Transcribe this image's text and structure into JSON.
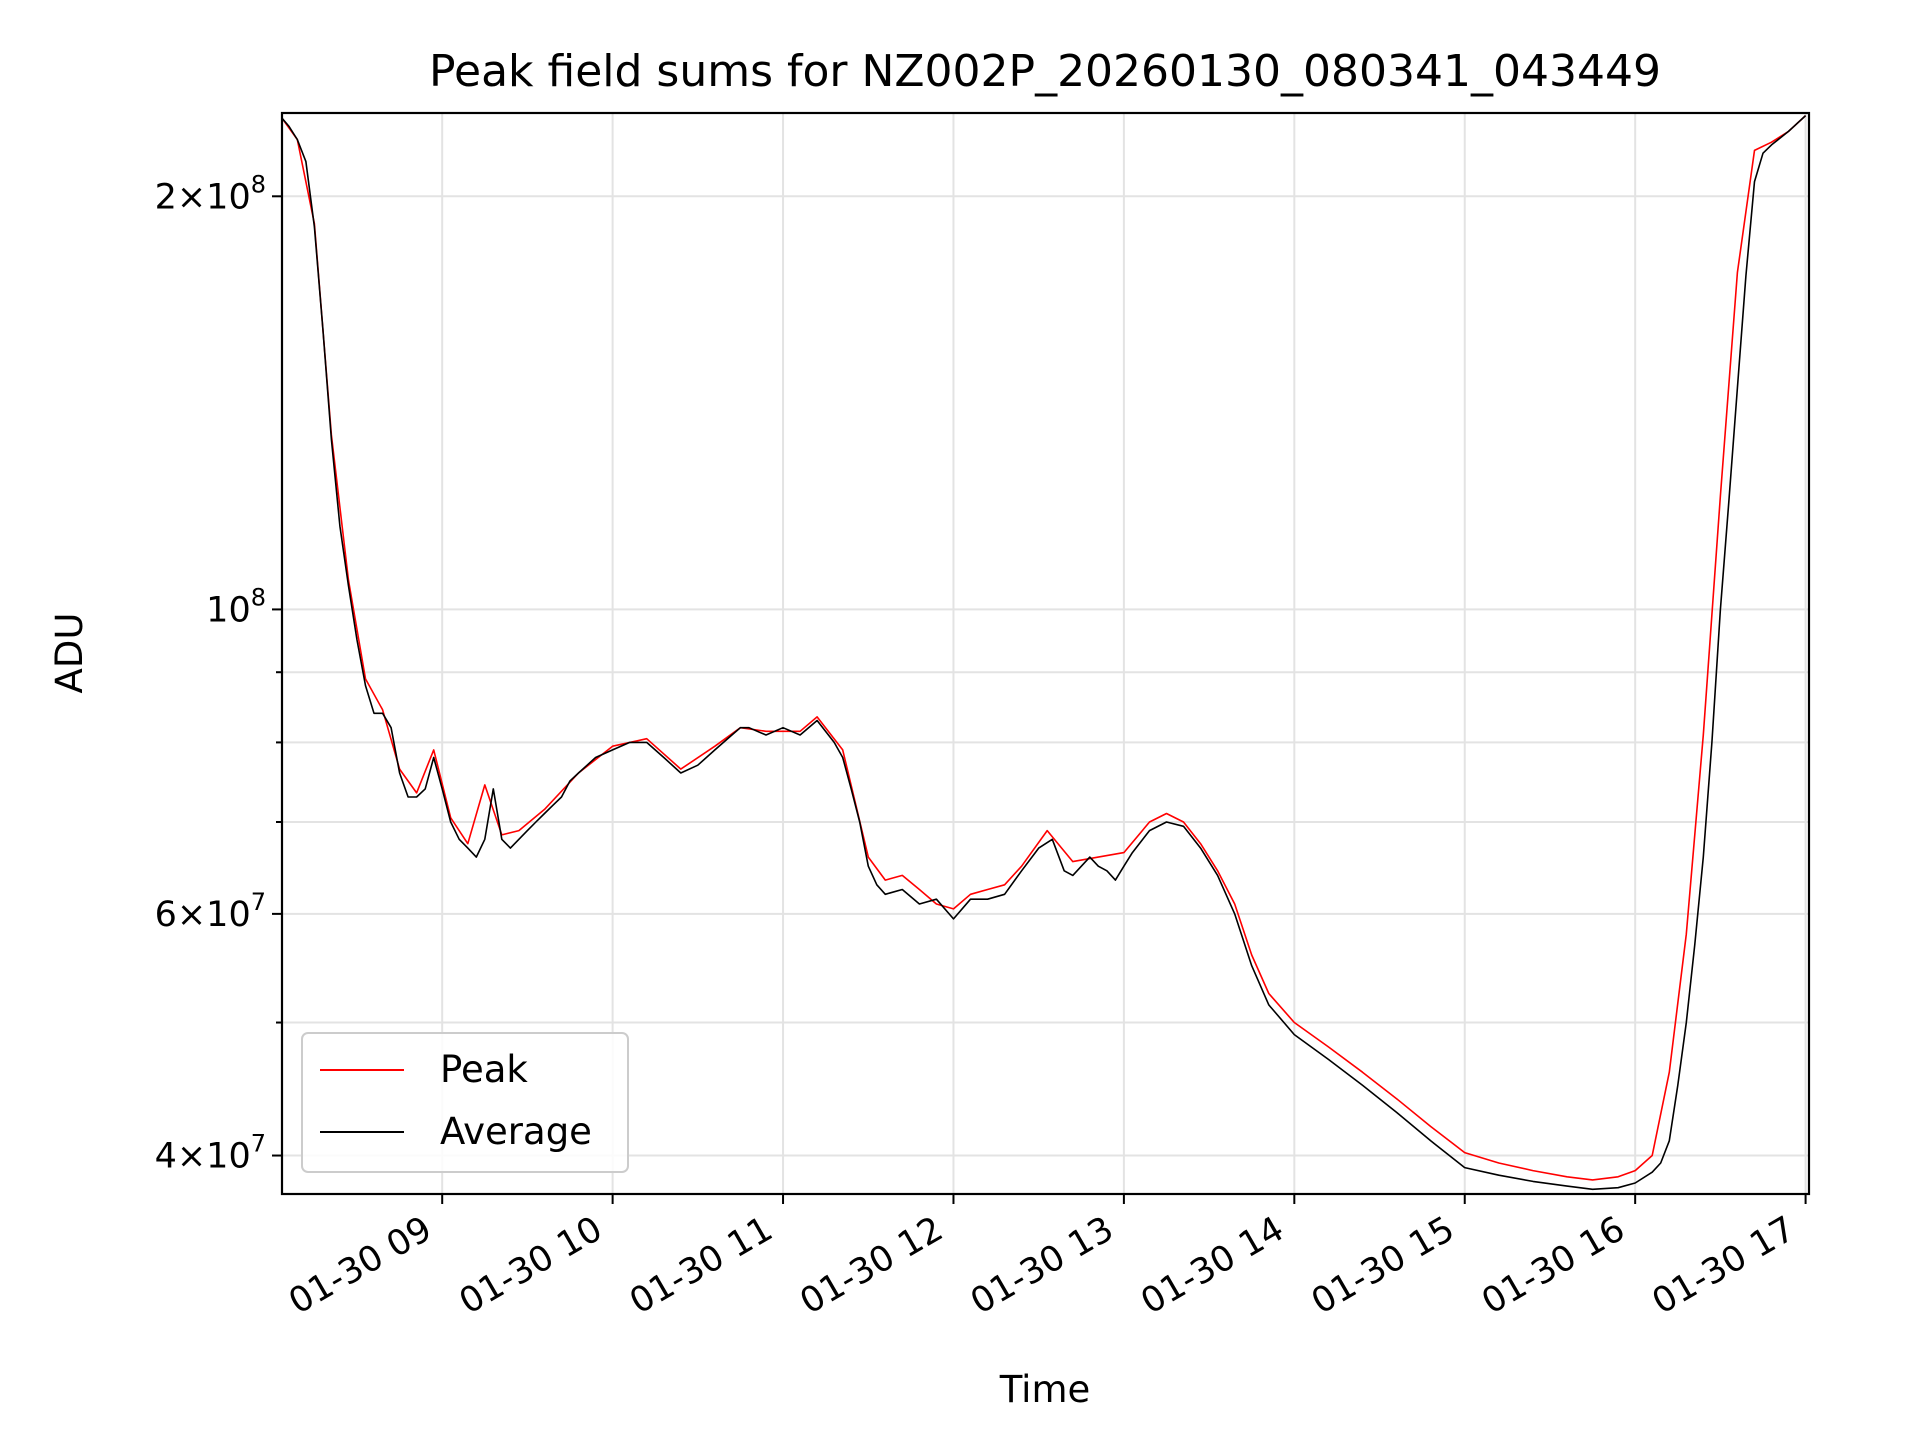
{
  "chart_data": {
    "type": "line",
    "title": "Peak field sums for NZ002P_20260130_080341_043449",
    "xlabel": "Time",
    "ylabel": "ADU",
    "yscale": "log",
    "xlim": [
      8.06,
      17.02
    ],
    "ylim": [
      37500000,
      230000000
    ],
    "x_unit": "hours on 2026-01-30",
    "x_ticks": [
      9,
      10,
      11,
      12,
      13,
      14,
      15,
      16,
      17
    ],
    "x_tick_labels": [
      "01-30 09",
      "01-30 10",
      "01-30 11",
      "01-30 12",
      "01-30 13",
      "01-30 14",
      "01-30 15",
      "01-30 16",
      "01-30 17"
    ],
    "y_major_ticks": [
      {
        "value": 40000000,
        "mantissa": "4",
        "exp": "7"
      },
      {
        "value": 60000000,
        "mantissa": "6",
        "exp": "7"
      },
      {
        "value": 100000000,
        "mantissa": "",
        "exp": "8"
      },
      {
        "value": 200000000,
        "mantissa": "2",
        "exp": "8"
      }
    ],
    "y_minor_ticks": [
      50000000,
      70000000,
      80000000,
      90000000
    ],
    "grid": true,
    "legend": {
      "position": "lower-left",
      "entries": [
        {
          "label": "Peak",
          "color": "#ff0000"
        },
        {
          "label": "Average",
          "color": "#000000"
        }
      ]
    },
    "series": [
      {
        "name": "Average",
        "color": "#000000",
        "x": [
          8.06,
          8.1,
          8.15,
          8.2,
          8.25,
          8.3,
          8.35,
          8.4,
          8.45,
          8.5,
          8.55,
          8.6,
          8.65,
          8.7,
          8.75,
          8.8,
          8.85,
          8.9,
          8.95,
          9.0,
          9.05,
          9.1,
          9.15,
          9.2,
          9.25,
          9.3,
          9.35,
          9.4,
          9.45,
          9.5,
          9.55,
          9.6,
          9.65,
          9.7,
          9.75,
          9.8,
          9.85,
          9.9,
          10.0,
          10.1,
          10.2,
          10.3,
          10.4,
          10.5,
          10.6,
          10.7,
          10.75,
          10.8,
          10.9,
          11.0,
          11.1,
          11.2,
          11.3,
          11.35,
          11.4,
          11.45,
          11.5,
          11.55,
          11.6,
          11.7,
          11.8,
          11.9,
          12.0,
          12.1,
          12.2,
          12.3,
          12.4,
          12.5,
          12.58,
          12.65,
          12.7,
          12.8,
          12.85,
          12.9,
          12.95,
          13.0,
          13.05,
          13.15,
          13.25,
          13.35,
          13.45,
          13.55,
          13.65,
          13.75,
          13.85,
          14.0,
          14.2,
          14.4,
          14.6,
          14.8,
          15.0,
          15.2,
          15.4,
          15.6,
          15.75,
          15.9,
          16.0,
          16.1,
          16.15,
          16.2,
          16.25,
          16.3,
          16.35,
          16.4,
          16.45,
          16.5,
          16.55,
          16.6,
          16.65,
          16.7,
          16.75,
          16.8,
          16.9,
          17.0
        ],
        "y": [
          228000000,
          225000000,
          220000000,
          212000000,
          190000000,
          160000000,
          133000000,
          115000000,
          104000000,
          95000000,
          88000000,
          84000000,
          84000000,
          82000000,
          76000000,
          73000000,
          73000000,
          74000000,
          78000000,
          74000000,
          70000000,
          68000000,
          67000000,
          66000000,
          68000000,
          74000000,
          68000000,
          67000000,
          68000000,
          69000000,
          70000000,
          71000000,
          72000000,
          73000000,
          75000000,
          76000000,
          77000000,
          78000000,
          79000000,
          80000000,
          80000000,
          78000000,
          76000000,
          77000000,
          79000000,
          81000000,
          82000000,
          82000000,
          81000000,
          82000000,
          81000000,
          83000000,
          80000000,
          78000000,
          74000000,
          70000000,
          65000000,
          63000000,
          62000000,
          62500000,
          61000000,
          61500000,
          59500000,
          61500000,
          61500000,
          62000000,
          64500000,
          67000000,
          68000000,
          64500000,
          64000000,
          66000000,
          65000000,
          64500000,
          63500000,
          65000000,
          66500000,
          69000000,
          70000000,
          69500000,
          67000000,
          64000000,
          60000000,
          55000000,
          51500000,
          49000000,
          47000000,
          45000000,
          43000000,
          41000000,
          39200000,
          38700000,
          38300000,
          38000000,
          37800000,
          37900000,
          38200000,
          38900000,
          39500000,
          41000000,
          45000000,
          50000000,
          57000000,
          66000000,
          80000000,
          100000000,
          120000000,
          145000000,
          175000000,
          205000000,
          215000000,
          218000000,
          223000000,
          229000000
        ]
      },
      {
        "name": "Peak",
        "color": "#ff0000",
        "x": [
          8.06,
          8.15,
          8.25,
          8.35,
          8.45,
          8.55,
          8.65,
          8.75,
          8.85,
          8.95,
          9.05,
          9.15,
          9.25,
          9.35,
          9.45,
          9.6,
          9.8,
          10.0,
          10.2,
          10.4,
          10.6,
          10.75,
          10.9,
          11.1,
          11.2,
          11.35,
          11.5,
          11.6,
          11.7,
          11.8,
          11.9,
          12.0,
          12.1,
          12.2,
          12.3,
          12.4,
          12.55,
          12.7,
          12.85,
          13.0,
          13.15,
          13.25,
          13.35,
          13.45,
          13.55,
          13.65,
          13.75,
          13.85,
          14.0,
          14.2,
          14.4,
          14.6,
          14.8,
          15.0,
          15.2,
          15.4,
          15.6,
          15.75,
          15.9,
          16.0,
          16.1,
          16.2,
          16.3,
          16.4,
          16.5,
          16.6,
          16.7,
          16.8,
          16.9,
          17.0
        ],
        "y": [
          228000000,
          220000000,
          191000000,
          134000000,
          105000000,
          89000000,
          84500000,
          76500000,
          73500000,
          79000000,
          70500000,
          67500000,
          74500000,
          68500000,
          69000000,
          71500000,
          76000000,
          79500000,
          80500000,
          76500000,
          79500000,
          82000000,
          81500000,
          81500000,
          83500000,
          79000000,
          66000000,
          63500000,
          64000000,
          62500000,
          61000000,
          60500000,
          62000000,
          62500000,
          63000000,
          65000000,
          69000000,
          65500000,
          66000000,
          66500000,
          70000000,
          71000000,
          70000000,
          67500000,
          64500000,
          61000000,
          56000000,
          52500000,
          50000000,
          48000000,
          46000000,
          44000000,
          42000000,
          40200000,
          39500000,
          39000000,
          38600000,
          38400000,
          38600000,
          39000000,
          40000000,
          46000000,
          58000000,
          81000000,
          121000000,
          176000000,
          216000000,
          219000000,
          223000000,
          229000000
        ]
      }
    ]
  }
}
